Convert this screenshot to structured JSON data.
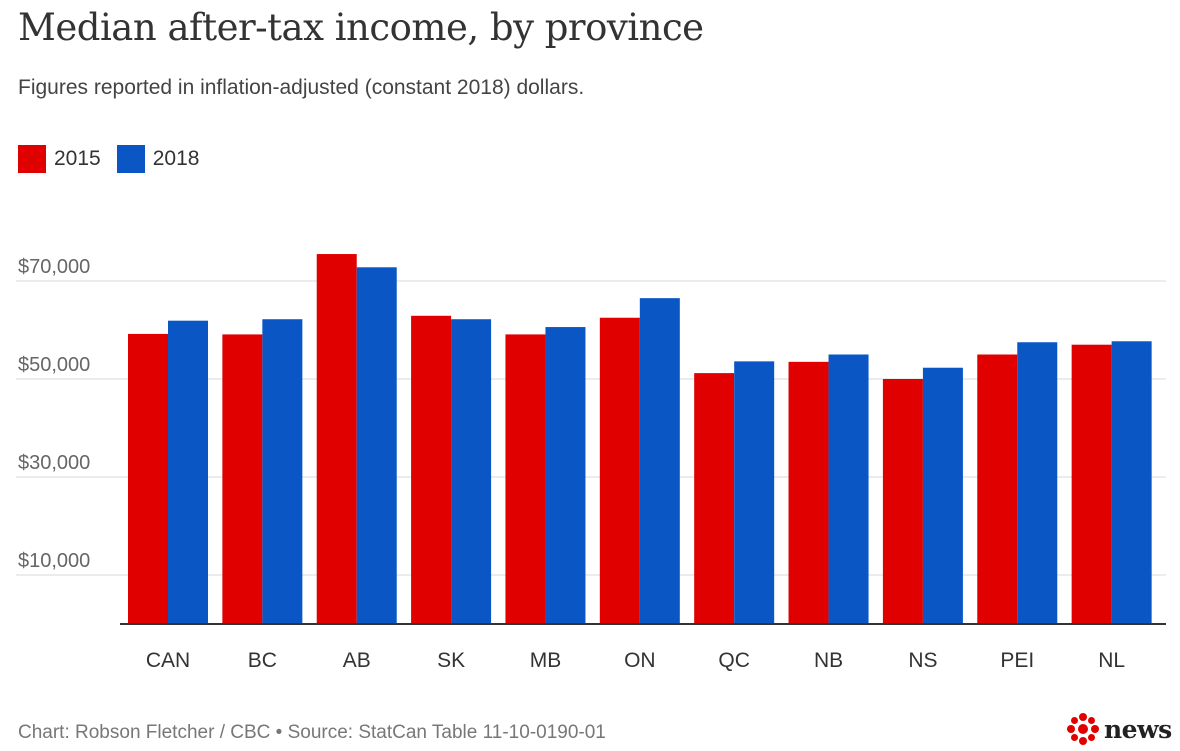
{
  "title": "Median after-tax income, by province",
  "subtitle": "Figures reported in inflation-adjusted (constant 2018) dollars.",
  "legend": [
    {
      "label": "2015",
      "color": "#e00000"
    },
    {
      "label": "2018",
      "color": "#0a56c5"
    }
  ],
  "footer": "Chart: Robson Fletcher / CBC • Source: StatCan Table 11-10-0190-01",
  "logo": {
    "text": "news",
    "icon": "cbc-gem-icon",
    "color": "#e00000"
  },
  "chart_data": {
    "type": "bar",
    "title": "Median after-tax income, by province",
    "categories": [
      "CAN",
      "BC",
      "AB",
      "SK",
      "MB",
      "ON",
      "QC",
      "NB",
      "NS",
      "PEI",
      "NL"
    ],
    "series": [
      {
        "name": "2015",
        "color": "#e00000",
        "values": [
          59200,
          59100,
          75500,
          62900,
          59100,
          62500,
          51200,
          53500,
          50000,
          55000,
          57000
        ]
      },
      {
        "name": "2018",
        "color": "#0a56c5",
        "values": [
          61900,
          62200,
          72800,
          62200,
          60600,
          66500,
          53600,
          55000,
          52300,
          57500,
          57700
        ]
      }
    ],
    "ytick_labels": [
      "$10,000",
      "$30,000",
      "$50,000",
      "$70,000"
    ],
    "yticks": [
      10000,
      30000,
      50000,
      70000
    ],
    "ylim": [
      0,
      80000
    ],
    "grid": true,
    "legend_position": "top-left"
  }
}
